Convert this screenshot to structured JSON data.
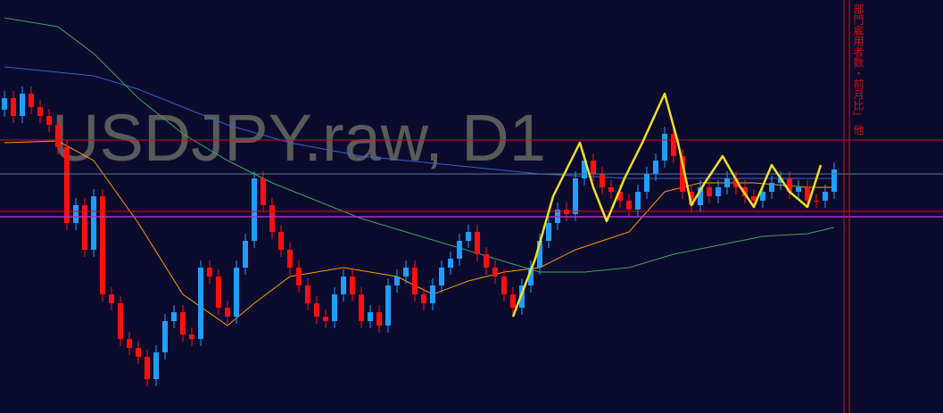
{
  "watermark": "USDJPY.raw, D1",
  "event_label": "部門雇用者数・前月比」 他",
  "chart_data": {
    "type": "candlestick",
    "ylim": [
      0,
      463
    ],
    "up_color": "#1e9fff",
    "down_color": "#ff1010",
    "open": [
      340,
      353,
      333,
      358,
      343,
      333,
      323,
      298,
      213,
      233,
      183,
      243,
      133,
      123,
      83,
      73,
      63,
      38,
      68,
      103,
      113,
      88,
      83,
      163,
      153,
      118,
      108,
      163,
      193,
      263,
      233,
      203,
      183,
      163,
      143,
      123,
      108,
      103,
      133,
      153,
      133,
      103,
      113,
      98,
      143,
      153,
      163,
      133,
      123,
      143,
      163,
      173,
      193,
      203,
      178,
      163,
      153,
      133,
      118,
      143,
      163,
      193,
      213,
      228,
      223,
      263,
      283,
      268,
      253,
      248,
      238,
      228,
      248,
      268,
      283,
      313,
      288,
      248,
      233,
      253,
      243,
      253,
      263,
      253,
      243,
      238,
      248,
      258,
      263,
      248,
      253,
      238,
      238,
      248
    ],
    "high": [
      361,
      361,
      366,
      366,
      351,
      341,
      331,
      306,
      241,
      241,
      251,
      251,
      141,
      131,
      91,
      81,
      71,
      76,
      111,
      121,
      121,
      96,
      171,
      171,
      161,
      126,
      171,
      201,
      271,
      271,
      241,
      211,
      191,
      171,
      151,
      131,
      116,
      141,
      161,
      161,
      141,
      121,
      121,
      151,
      161,
      171,
      171,
      141,
      151,
      171,
      181,
      201,
      211,
      211,
      186,
      171,
      161,
      141,
      151,
      171,
      201,
      221,
      236,
      236,
      271,
      291,
      291,
      276,
      261,
      256,
      246,
      256,
      276,
      291,
      321,
      321,
      296,
      256,
      261,
      261,
      261,
      271,
      271,
      261,
      251,
      256,
      266,
      271,
      271,
      261,
      261,
      246,
      256,
      281
    ],
    "low": [
      332,
      325,
      325,
      335,
      325,
      315,
      290,
      205,
      205,
      175,
      175,
      125,
      115,
      75,
      65,
      55,
      30,
      30,
      60,
      95,
      80,
      75,
      75,
      145,
      110,
      100,
      100,
      155,
      185,
      225,
      195,
      175,
      155,
      135,
      115,
      100,
      95,
      95,
      125,
      125,
      95,
      95,
      90,
      90,
      135,
      145,
      125,
      115,
      115,
      135,
      155,
      165,
      185,
      170,
      155,
      145,
      125,
      110,
      110,
      135,
      155,
      185,
      205,
      215,
      215,
      255,
      260,
      245,
      240,
      230,
      220,
      220,
      240,
      260,
      275,
      280,
      240,
      225,
      225,
      235,
      235,
      245,
      245,
      235,
      230,
      230,
      240,
      250,
      240,
      240,
      230,
      230,
      230,
      240
    ],
    "close": [
      353,
      333,
      358,
      343,
      333,
      323,
      298,
      213,
      233,
      183,
      243,
      133,
      123,
      83,
      73,
      63,
      38,
      68,
      103,
      113,
      88,
      83,
      163,
      153,
      118,
      108,
      163,
      193,
      263,
      233,
      203,
      183,
      163,
      143,
      123,
      108,
      103,
      133,
      153,
      133,
      103,
      113,
      98,
      143,
      153,
      163,
      133,
      123,
      143,
      163,
      173,
      193,
      203,
      178,
      163,
      153,
      133,
      118,
      143,
      163,
      193,
      213,
      228,
      223,
      263,
      283,
      268,
      253,
      248,
      238,
      228,
      248,
      268,
      283,
      313,
      288,
      248,
      233,
      253,
      243,
      253,
      263,
      253,
      243,
      238,
      248,
      258,
      263,
      248,
      253,
      238,
      238,
      248,
      273
    ],
    "lines": [
      {
        "color": "#ff9900",
        "x": [
          0,
          6,
          10,
          15,
          20,
          25,
          28,
          32,
          38,
          44,
          48,
          52,
          56,
          60,
          64,
          70,
          74,
          78,
          84,
          90,
          93
        ],
        "values": [
          303,
          305,
          283,
          213,
          133,
          98,
          123,
          153,
          163,
          153,
          133,
          148,
          158,
          163,
          183,
          203,
          248,
          258,
          258,
          253,
          253
        ]
      },
      {
        "color": "#3a5fd0",
        "x": [
          0,
          10,
          15,
          20,
          25,
          32,
          40,
          50,
          60,
          70,
          80,
          93
        ],
        "values": [
          388,
          378,
          363,
          343,
          323,
          303,
          288,
          278,
          268,
          263,
          263,
          263
        ]
      },
      {
        "color": "#3aa85a",
        "x": [
          0,
          6,
          10,
          15,
          20,
          25,
          30,
          35,
          40,
          45,
          50,
          55,
          60,
          65,
          70,
          75,
          80,
          85,
          90,
          93
        ],
        "values": [
          443,
          433,
          403,
          353,
          313,
          283,
          258,
          238,
          218,
          203,
          188,
          173,
          158,
          158,
          163,
          178,
          188,
          198,
          201,
          208
        ]
      }
    ]
  }
}
